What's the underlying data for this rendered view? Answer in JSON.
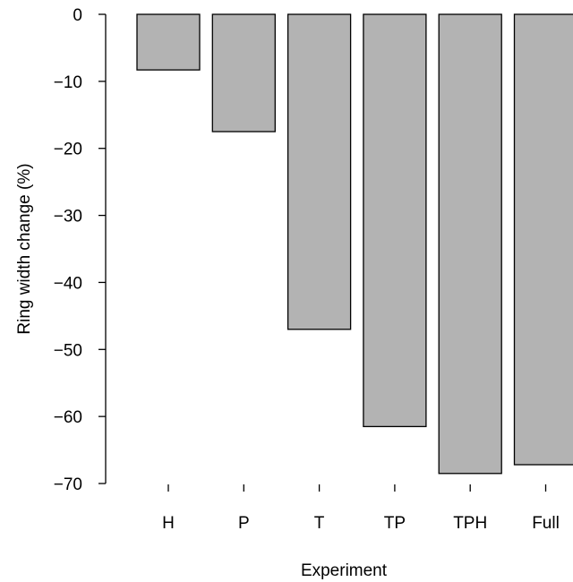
{
  "chart_data": {
    "type": "bar",
    "categories": [
      "H",
      "P",
      "T",
      "TP",
      "TPH",
      "Full"
    ],
    "values": [
      -8.3,
      -17.5,
      -47.0,
      -61.5,
      -68.5,
      -67.2
    ],
    "title": "",
    "xlabel": "Experiment",
    "ylabel": "Ring width change (%)",
    "ylim": [
      -70,
      0
    ],
    "yticks": [
      0,
      -10,
      -20,
      -30,
      -40,
      -50,
      -60,
      -70
    ],
    "ytick_labels": [
      "0",
      "−10",
      "−20",
      "−30",
      "−40",
      "−50",
      "−60",
      "−70"
    ],
    "grid": false,
    "legend": "none"
  },
  "colors": {
    "bar_fill": "#b3b3b3",
    "bar_stroke": "#000000",
    "axis": "#000000",
    "background": "#ffffff"
  }
}
